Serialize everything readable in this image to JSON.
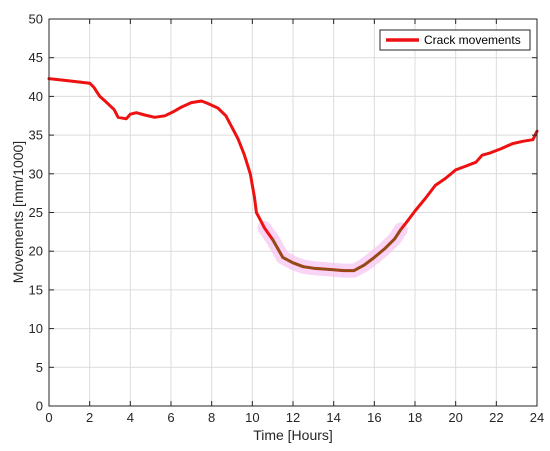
{
  "chart_data": {
    "type": "line",
    "title": "",
    "xlabel": "Time [Hours]",
    "ylabel": "Movements [mm/1000]",
    "xlim": [
      0,
      24
    ],
    "ylim": [
      0,
      50
    ],
    "xticks": [
      0,
      2,
      4,
      6,
      8,
      10,
      12,
      14,
      16,
      18,
      20,
      22,
      24
    ],
    "yticks": [
      0,
      5,
      10,
      15,
      20,
      25,
      30,
      35,
      40,
      45,
      50
    ],
    "grid": true,
    "legend_position": "top-right",
    "series": [
      {
        "name": "Crack movements",
        "color": "#ee1111",
        "x": [
          0,
          1,
          2,
          2.2,
          2.5,
          2.8,
          3.2,
          3.4,
          3.8,
          4.0,
          4.3,
          4.7,
          5.2,
          5.7,
          6.1,
          6.5,
          7.0,
          7.5,
          7.8,
          8.3,
          8.7,
          9.0,
          9.3,
          9.6,
          9.9,
          10.1,
          10.2,
          10.4,
          10.6,
          11.0,
          11.5,
          12.0,
          12.5,
          13.0,
          13.5,
          14.0,
          14.5,
          15.0,
          15.5,
          16.0,
          16.5,
          17.0,
          17.3,
          17.6,
          18.0,
          18.5,
          19.0,
          19.5,
          20.0,
          20.5,
          21.0,
          21.3,
          21.7,
          22.2,
          22.8,
          23.3,
          23.8,
          24.0
        ],
        "y": [
          42.3,
          42.0,
          41.7,
          41.2,
          40.0,
          39.3,
          38.3,
          37.3,
          37.1,
          37.7,
          37.9,
          37.6,
          37.3,
          37.5,
          38.0,
          38.6,
          39.2,
          39.4,
          39.1,
          38.5,
          37.5,
          36.0,
          34.5,
          32.5,
          30.0,
          27.0,
          25.0,
          24.0,
          23.0,
          21.5,
          19.2,
          18.5,
          18.0,
          17.8,
          17.7,
          17.6,
          17.5,
          17.5,
          18.2,
          19.2,
          20.3,
          21.6,
          22.8,
          23.8,
          25.2,
          26.8,
          28.5,
          29.4,
          30.5,
          31.0,
          31.5,
          32.4,
          32.7,
          33.2,
          33.9,
          34.2,
          34.4,
          35.5
        ]
      }
    ]
  }
}
